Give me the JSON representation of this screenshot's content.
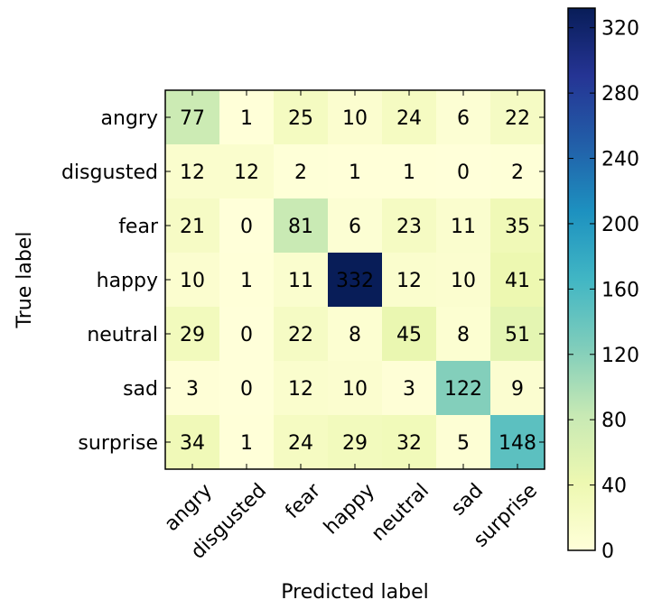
{
  "chart_data": {
    "type": "heatmap",
    "title": "",
    "xlabel": "Predicted label",
    "ylabel": "True label",
    "x_categories": [
      "angry",
      "disgusted",
      "fear",
      "happy",
      "neutral",
      "sad",
      "surprise"
    ],
    "y_categories": [
      "angry",
      "disgusted",
      "fear",
      "happy",
      "neutral",
      "sad",
      "surprise"
    ],
    "values": [
      [
        77,
        1,
        25,
        10,
        24,
        6,
        22
      ],
      [
        12,
        12,
        2,
        1,
        1,
        0,
        2
      ],
      [
        21,
        0,
        81,
        6,
        23,
        11,
        35
      ],
      [
        10,
        1,
        11,
        332,
        12,
        10,
        41
      ],
      [
        29,
        0,
        22,
        8,
        45,
        8,
        51
      ],
      [
        3,
        0,
        12,
        10,
        3,
        122,
        9
      ],
      [
        34,
        1,
        24,
        29,
        32,
        5,
        148
      ]
    ],
    "colorscale": "YlGnBu",
    "colorbar": {
      "range": [
        0,
        332
      ],
      "ticks": [
        0,
        40,
        80,
        120,
        160,
        200,
        240,
        280,
        320
      ],
      "tick_labels": [
        "0",
        "40",
        "80",
        "120",
        "160",
        "200",
        "240",
        "280",
        "320"
      ]
    },
    "grid": false
  }
}
